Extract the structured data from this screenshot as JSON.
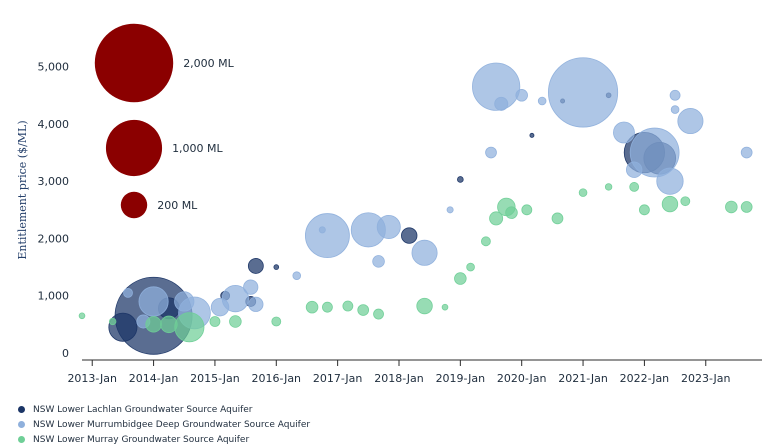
{
  "chart_data": {
    "type": "scatter",
    "subtype": "bubble",
    "title": "",
    "xlabel": "",
    "ylabel": "Entitlement price ($/ML)",
    "ylim": [
      0,
      5500
    ],
    "yticks": [
      0,
      1000,
      2000,
      3000,
      4000,
      5000
    ],
    "ytick_labels": [
      "0",
      "1,000",
      "2,000",
      "3,000",
      "4,000",
      "5,000"
    ],
    "xlim": [
      "2012-11",
      "2023-12"
    ],
    "xticks": [
      "2013-01",
      "2014-01",
      "2015-01",
      "2016-01",
      "2017-01",
      "2018-01",
      "2019-01",
      "2020-01",
      "2021-01",
      "2022-01",
      "2023-01"
    ],
    "xtick_labels": [
      "2013-Jan",
      "2014-Jan",
      "2015-Jan",
      "2016-Jan",
      "2017-Jan",
      "2018-Jan",
      "2019-Jan",
      "2020-Jan",
      "2021-Jan",
      "2022-Jan",
      "2023-Jan"
    ],
    "grid": false,
    "legend_position": "bottom-left",
    "size_reference": [
      {
        "label": "2,000 ML",
        "volume": 2000
      },
      {
        "label": "1,000 ML",
        "volume": 1000
      },
      {
        "label": "200 ML",
        "volume": 200
      }
    ],
    "size_reference_color": "#8b0000",
    "series": [
      {
        "name": "NSW Lower Lachlan Groundwater Source Aquifer",
        "color": "#1b3566",
        "points": [
          {
            "x": "2013-07",
            "y": 450,
            "volume": 230
          },
          {
            "x": "2014-01",
            "y": 650,
            "volume": 1930
          },
          {
            "x": "2014-04",
            "y": 780,
            "volume": 120
          },
          {
            "x": "2015-03",
            "y": 1000,
            "volume": 15
          },
          {
            "x": "2015-08",
            "y": 900,
            "volume": 20
          },
          {
            "x": "2015-09",
            "y": 1520,
            "volume": 55
          },
          {
            "x": "2016-01",
            "y": 1500,
            "volume": 2
          },
          {
            "x": "2018-03",
            "y": 2050,
            "volume": 60
          },
          {
            "x": "2019-01",
            "y": 3030,
            "volume": 4
          },
          {
            "x": "2020-03",
            "y": 3800,
            "volume": 1
          },
          {
            "x": "2020-09",
            "y": 4400,
            "volume": 1
          },
          {
            "x": "2021-06",
            "y": 4500,
            "volume": 2
          },
          {
            "x": "2022-01",
            "y": 3500,
            "volume": 500
          },
          {
            "x": "2022-04",
            "y": 3400,
            "volume": 300
          }
        ]
      },
      {
        "name": "NSW Lower Murrumbidgee Deep Groundwater Source Aquifer",
        "color": "#8fb0dc",
        "points": [
          {
            "x": "2013-08",
            "y": 1050,
            "volume": 15
          },
          {
            "x": "2013-11",
            "y": 550,
            "volume": 40
          },
          {
            "x": "2014-01",
            "y": 900,
            "volume": 250
          },
          {
            "x": "2014-07",
            "y": 900,
            "volume": 100
          },
          {
            "x": "2014-09",
            "y": 700,
            "volume": 300
          },
          {
            "x": "2015-02",
            "y": 800,
            "volume": 80
          },
          {
            "x": "2015-05",
            "y": 950,
            "volume": 200
          },
          {
            "x": "2015-08",
            "y": 1150,
            "volume": 50
          },
          {
            "x": "2015-09",
            "y": 850,
            "volume": 50
          },
          {
            "x": "2016-05",
            "y": 1350,
            "volume": 10
          },
          {
            "x": "2016-10",
            "y": 2150,
            "volume": 5
          },
          {
            "x": "2016-11",
            "y": 2050,
            "volume": 600
          },
          {
            "x": "2017-07",
            "y": 2150,
            "volume": 350
          },
          {
            "x": "2017-09",
            "y": 1600,
            "volume": 30
          },
          {
            "x": "2017-11",
            "y": 2200,
            "volume": 150
          },
          {
            "x": "2018-06",
            "y": 1750,
            "volume": 180
          },
          {
            "x": "2018-11",
            "y": 2500,
            "volume": 5
          },
          {
            "x": "2019-07",
            "y": 3500,
            "volume": 25
          },
          {
            "x": "2019-08",
            "y": 4650,
            "volume": 700
          },
          {
            "x": "2019-09",
            "y": 4350,
            "volume": 40
          },
          {
            "x": "2020-01",
            "y": 4500,
            "volume": 30
          },
          {
            "x": "2020-05",
            "y": 4400,
            "volume": 10
          },
          {
            "x": "2021-01",
            "y": 4550,
            "volume": 1550
          },
          {
            "x": "2021-09",
            "y": 3850,
            "volume": 120
          },
          {
            "x": "2021-11",
            "y": 3200,
            "volume": 60
          },
          {
            "x": "2022-03",
            "y": 3500,
            "volume": 750
          },
          {
            "x": "2022-06",
            "y": 3000,
            "volume": 200
          },
          {
            "x": "2022-07",
            "y": 4500,
            "volume": 20
          },
          {
            "x": "2022-07",
            "y": 4250,
            "volume": 10
          },
          {
            "x": "2022-10",
            "y": 4050,
            "volume": 180
          },
          {
            "x": "2023-09",
            "y": 3500,
            "volume": 25
          }
        ]
      },
      {
        "name": "NSW Lower Murray Groundwater Source Aquifer",
        "color": "#6fcf97",
        "points": [
          {
            "x": "2012-11",
            "y": 650,
            "volume": 4
          },
          {
            "x": "2013-05",
            "y": 550,
            "volume": 6
          },
          {
            "x": "2014-01",
            "y": 500,
            "volume": 60
          },
          {
            "x": "2014-04",
            "y": 500,
            "volume": 70
          },
          {
            "x": "2014-08",
            "y": 450,
            "volume": 250
          },
          {
            "x": "2015-01",
            "y": 550,
            "volume": 20
          },
          {
            "x": "2015-05",
            "y": 550,
            "volume": 30
          },
          {
            "x": "2016-01",
            "y": 550,
            "volume": 15
          },
          {
            "x": "2016-08",
            "y": 800,
            "volume": 30
          },
          {
            "x": "2016-11",
            "y": 800,
            "volume": 20
          },
          {
            "x": "2017-03",
            "y": 820,
            "volume": 20
          },
          {
            "x": "2017-06",
            "y": 750,
            "volume": 25
          },
          {
            "x": "2017-09",
            "y": 680,
            "volume": 20
          },
          {
            "x": "2018-06",
            "y": 820,
            "volume": 60
          },
          {
            "x": "2018-10",
            "y": 800,
            "volume": 4
          },
          {
            "x": "2019-01",
            "y": 1300,
            "volume": 30
          },
          {
            "x": "2019-03",
            "y": 1500,
            "volume": 10
          },
          {
            "x": "2019-06",
            "y": 1950,
            "volume": 15
          },
          {
            "x": "2019-08",
            "y": 2350,
            "volume": 40
          },
          {
            "x": "2019-10",
            "y": 2550,
            "volume": 80
          },
          {
            "x": "2019-11",
            "y": 2450,
            "volume": 30
          },
          {
            "x": "2020-02",
            "y": 2500,
            "volume": 20
          },
          {
            "x": "2020-08",
            "y": 2350,
            "volume": 25
          },
          {
            "x": "2021-01",
            "y": 2800,
            "volume": 10
          },
          {
            "x": "2021-06",
            "y": 2900,
            "volume": 6
          },
          {
            "x": "2021-11",
            "y": 2900,
            "volume": 15
          },
          {
            "x": "2022-01",
            "y": 2500,
            "volume": 20
          },
          {
            "x": "2022-06",
            "y": 2600,
            "volume": 60
          },
          {
            "x": "2022-09",
            "y": 2650,
            "volume": 15
          },
          {
            "x": "2023-06",
            "y": 2550,
            "volume": 30
          },
          {
            "x": "2023-09",
            "y": 2550,
            "volume": 25
          }
        ]
      }
    ]
  }
}
